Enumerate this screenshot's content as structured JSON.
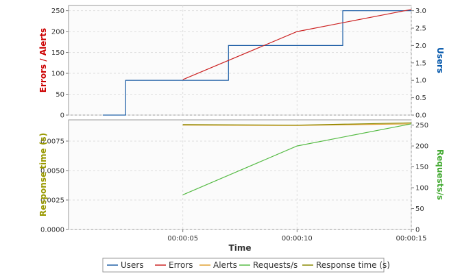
{
  "chart_data": [
    {
      "type": "line",
      "title": "",
      "xlabel": "",
      "x_domain_seconds": [
        0,
        15
      ],
      "y_left": {
        "label": "Errors / Alerts",
        "color": "#cc0000",
        "lim": [
          0,
          262.5
        ],
        "ticks": [
          0,
          50,
          100,
          150,
          200,
          250
        ]
      },
      "y_right": {
        "label": "Users",
        "color": "#0055aa",
        "lim": [
          0,
          3.15
        ],
        "ticks": [
          "0.0",
          "0.5",
          "1.0",
          "1.5",
          "2.0",
          "2.5",
          "3.0"
        ],
        "tick_values": [
          0,
          0.5,
          1.0,
          1.5,
          2.0,
          2.5,
          3.0
        ]
      },
      "grid": true,
      "series": [
        {
          "name": "Users",
          "color": "#1f5fa6",
          "axis": "right",
          "step": true,
          "x": [
            1.5,
            2.5,
            2.5,
            5.0,
            7.0,
            7.0,
            12.0,
            12.0,
            15.0
          ],
          "values": [
            0,
            0,
            1,
            1,
            1,
            2,
            2,
            3,
            3
          ]
        },
        {
          "name": "Errors",
          "color": "#cc2222",
          "axis": "left",
          "x": [
            5.0,
            10.0,
            15.0
          ],
          "values": [
            85,
            200,
            253
          ]
        }
      ]
    },
    {
      "type": "line",
      "title": "",
      "xlabel": "Time",
      "x_domain_seconds": [
        0,
        15
      ],
      "x_ticks": [
        "00:00:05",
        "00:00:10",
        "00:00:15"
      ],
      "x_tick_values": [
        5,
        10,
        15
      ],
      "y_left": {
        "label": "Response time (s)",
        "color": "#999900",
        "lim": [
          0,
          0.0093
        ],
        "ticks": [
          "0.0000",
          "0.0025",
          "0.0050",
          "0.0075"
        ],
        "tick_values": [
          0,
          0.0025,
          0.005,
          0.0075
        ]
      },
      "y_right": {
        "label": "Requests/s",
        "color": "#44aa33",
        "lim": [
          0,
          262.5
        ],
        "ticks": [
          0,
          50,
          100,
          150,
          200,
          250
        ]
      },
      "grid": true,
      "series": [
        {
          "name": "Alerts",
          "color": "#e0a030",
          "axis": "right",
          "x": [
            5.0,
            10.0,
            15.0
          ],
          "values": [
            250,
            249,
            253
          ]
        },
        {
          "name": "Requests/s",
          "color": "#55bb44",
          "axis": "right",
          "x": [
            5.0,
            10.0,
            15.0
          ],
          "values": [
            83,
            200,
            253
          ]
        },
        {
          "name": "Response time (s)",
          "color": "#888800",
          "axis": "left",
          "x": [
            5.0,
            10.0,
            15.0
          ],
          "values": [
            0.0089,
            0.00885,
            0.00905
          ]
        }
      ]
    }
  ],
  "legend": {
    "placement": "bottom",
    "items": [
      {
        "label": "Users",
        "color": "#1f5fa6"
      },
      {
        "label": "Errors",
        "color": "#cc2222"
      },
      {
        "label": "Alerts",
        "color": "#e0a030"
      },
      {
        "label": "Requests/s",
        "color": "#55bb44"
      },
      {
        "label": "Response time (s)",
        "color": "#888800"
      }
    ]
  }
}
